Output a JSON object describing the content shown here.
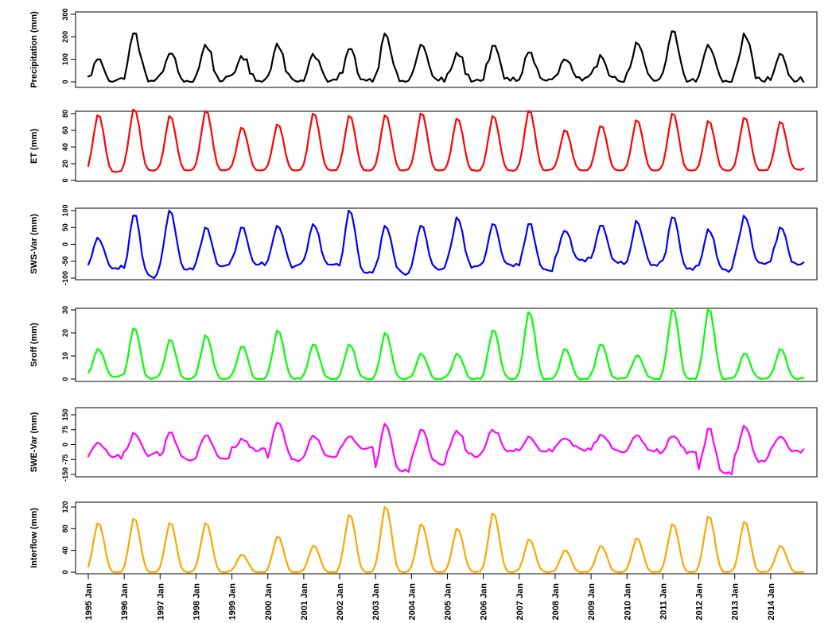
{
  "chart_data": [
    {
      "type": "line",
      "ylabel": "Precipitation (mm)",
      "color": "#000000",
      "ylim": [
        0,
        300
      ],
      "yticks": [
        0,
        100,
        200,
        300
      ],
      "peaks": [
        100,
        215,
        125,
        165,
        115,
        170,
        125,
        145,
        215,
        165,
        130,
        160,
        130,
        100,
        120,
        175,
        225,
        165,
        215,
        125
      ],
      "troughs": [
        5,
        5,
        5,
        5,
        5,
        5,
        5,
        5,
        5,
        5,
        5,
        5,
        5,
        5,
        5,
        5,
        5,
        5,
        5,
        5
      ],
      "noise": 0.35
    },
    {
      "type": "line",
      "ylabel": "ET (mm)",
      "color": "#ff0000",
      "ylim": [
        0,
        80
      ],
      "yticks": [
        0,
        20,
        40,
        60,
        80
      ],
      "peaks": [
        78,
        85,
        77,
        83,
        63,
        67,
        80,
        77,
        78,
        80,
        74,
        77,
        83,
        60,
        65,
        72,
        80,
        71,
        75,
        70
      ],
      "troughs": [
        10,
        12,
        12,
        12,
        12,
        12,
        12,
        12,
        12,
        12,
        12,
        12,
        12,
        12,
        12,
        12,
        12,
        12,
        12,
        13
      ],
      "noise": 0.04
    },
    {
      "type": "line",
      "ylabel": "SWS-Var (mm)",
      "color": "#0000ff",
      "ylim": [
        -100,
        100
      ],
      "yticks": [
        -100,
        -50,
        0,
        50,
        100
      ],
      "peaks": [
        20,
        85,
        100,
        50,
        50,
        55,
        60,
        100,
        55,
        55,
        80,
        60,
        60,
        40,
        55,
        70,
        80,
        45,
        85,
        50
      ],
      "troughs": [
        -70,
        -95,
        -75,
        -65,
        -60,
        -65,
        -60,
        -85,
        -85,
        -75,
        -65,
        -60,
        -75,
        -45,
        -55,
        -60,
        -70,
        -75,
        -55,
        -60
      ],
      "noise": 0.2
    },
    {
      "type": "line",
      "ylabel": "Sroff (mm)",
      "color": "#00ff00",
      "ylim": [
        0,
        30
      ],
      "yticks": [
        0,
        10,
        20,
        30
      ],
      "peaks": [
        13,
        22,
        17,
        19,
        14,
        21,
        15,
        15,
        20,
        11,
        11,
        21,
        29,
        13,
        15,
        10,
        30,
        30,
        11,
        13
      ],
      "troughs": [
        1,
        0,
        0,
        0,
        0,
        0,
        0,
        0,
        0,
        0,
        0,
        0,
        0,
        0,
        0,
        0,
        0,
        0,
        0,
        0
      ],
      "noise": 0.1
    },
    {
      "type": "line",
      "ylabel": "SWE-Var (mm)",
      "color": "#ff00ff",
      "ylim": [
        -150,
        150
      ],
      "yticks": [
        -150,
        -75,
        0,
        75,
        150
      ],
      "peaks": [
        10,
        60,
        60,
        45,
        30,
        110,
        45,
        40,
        105,
        75,
        70,
        75,
        40,
        30,
        50,
        45,
        40,
        80,
        95,
        40
      ],
      "troughs": [
        -60,
        -50,
        -75,
        -70,
        -30,
        -75,
        -60,
        -20,
        -135,
        -95,
        -60,
        -30,
        -35,
        -25,
        -30,
        -35,
        -35,
        -145,
        -80,
        -30
      ],
      "noise": 0.25
    },
    {
      "type": "line",
      "ylabel": "Interflow (mm)",
      "color": "#ffa500",
      "ylim": [
        0,
        120
      ],
      "yticks": [
        0,
        40,
        80,
        120
      ],
      "peaks": [
        90,
        98,
        90,
        90,
        32,
        65,
        48,
        105,
        120,
        88,
        80,
        108,
        60,
        40,
        48,
        62,
        88,
        102,
        92,
        48
      ],
      "troughs": [
        0,
        0,
        0,
        0,
        0,
        0,
        0,
        0,
        0,
        0,
        0,
        0,
        0,
        0,
        0,
        0,
        0,
        0,
        0,
        0
      ],
      "noise": 0.05
    }
  ],
  "x_axis": {
    "start_year": 1995,
    "end_year": 2015,
    "tick_labels": [
      "1995 Jan",
      "1996 Jan",
      "1997 Jan",
      "1998 Jan",
      "1999 Jan",
      "2000 Jan",
      "2001 Jan",
      "2002 Jan",
      "2003 Jan",
      "2004 Jan",
      "2005 Jan",
      "2006 Jan",
      "2007 Jan",
      "2008 Jan",
      "2009 Jan",
      "2010 Jan",
      "2011 Jan",
      "2012 Jan",
      "2013 Jan",
      "2014 Jan"
    ]
  }
}
